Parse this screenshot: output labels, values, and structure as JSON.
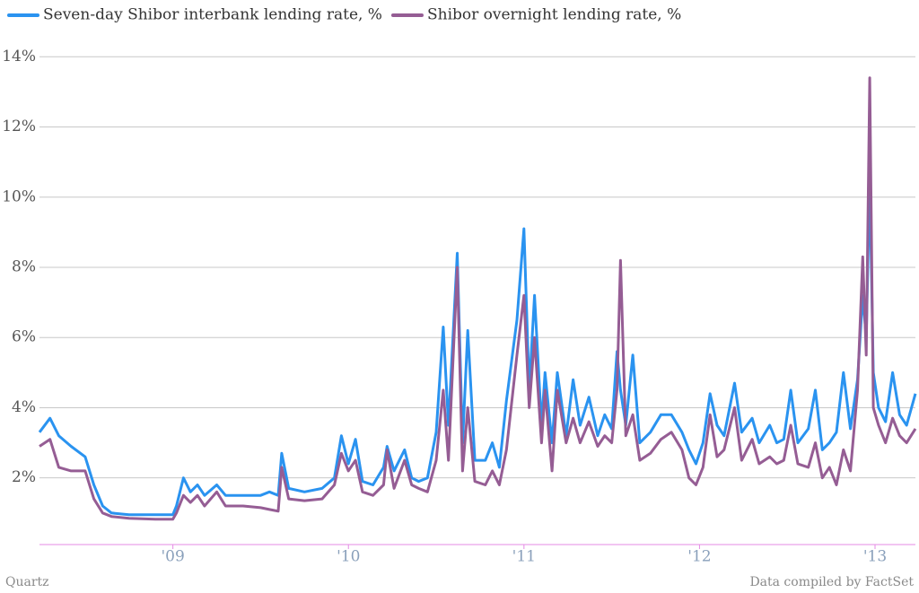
{
  "chart_data": {
    "type": "line",
    "x": [
      2008.24,
      2008.3,
      2008.35,
      2008.42,
      2008.5,
      2008.55,
      2008.6,
      2008.65,
      2008.75,
      2008.9,
      2009.0,
      2009.02,
      2009.06,
      2009.1,
      2009.14,
      2009.18,
      2009.25,
      2009.3,
      2009.4,
      2009.5,
      2009.55,
      2009.6,
      2009.62,
      2009.66,
      2009.75,
      2009.85,
      2009.92,
      2009.96,
      2010.0,
      2010.04,
      2010.08,
      2010.14,
      2010.2,
      2010.22,
      2010.26,
      2010.32,
      2010.36,
      2010.4,
      2010.45,
      2010.5,
      2010.54,
      2010.57,
      2010.62,
      2010.65,
      2010.68,
      2010.72,
      2010.78,
      2010.82,
      2010.86,
      2010.9,
      2010.96,
      2011.0,
      2011.03,
      2011.06,
      2011.1,
      2011.12,
      2011.16,
      2011.19,
      2011.24,
      2011.28,
      2011.32,
      2011.37,
      2011.42,
      2011.46,
      2011.5,
      2011.53,
      2011.55,
      2011.58,
      2011.62,
      2011.66,
      2011.72,
      2011.78,
      2011.84,
      2011.9,
      2011.94,
      2011.98,
      2012.02,
      2012.06,
      2012.1,
      2012.14,
      2012.2,
      2012.24,
      2012.3,
      2012.34,
      2012.4,
      2012.44,
      2012.48,
      2012.52,
      2012.56,
      2012.62,
      2012.66,
      2012.7,
      2012.74,
      2012.78,
      2012.82,
      2012.86,
      2012.9,
      2012.93,
      2012.95,
      2012.97,
      2012.99,
      2013.02,
      2013.06,
      2013.1,
      2013.14,
      2013.18,
      2013.23
    ],
    "series": [
      {
        "name": "Seven-day Shibor interbank lending rate, %",
        "color": "#2a93f0",
        "values": [
          3.3,
          3.7,
          3.2,
          2.9,
          2.6,
          1.8,
          1.2,
          1.0,
          0.95,
          0.95,
          0.95,
          1.2,
          2.0,
          1.6,
          1.8,
          1.5,
          1.8,
          1.5,
          1.5,
          1.5,
          1.6,
          1.5,
          2.7,
          1.7,
          1.6,
          1.7,
          2.0,
          3.2,
          2.4,
          3.1,
          1.9,
          1.8,
          2.3,
          2.9,
          2.2,
          2.8,
          2.0,
          1.9,
          2.0,
          3.3,
          6.3,
          3.5,
          8.4,
          3.0,
          6.2,
          2.5,
          2.5,
          3.0,
          2.3,
          4.2,
          6.5,
          9.1,
          4.5,
          7.2,
          3.5,
          5.0,
          3.0,
          5.0,
          3.2,
          4.8,
          3.5,
          4.3,
          3.2,
          3.8,
          3.4,
          5.6,
          4.5,
          3.5,
          5.5,
          3.0,
          3.3,
          3.8,
          3.8,
          3.3,
          2.8,
          2.4,
          3.0,
          4.4,
          3.5,
          3.2,
          4.7,
          3.3,
          3.7,
          3.0,
          3.5,
          3.0,
          3.1,
          4.5,
          3.0,
          3.4,
          4.5,
          2.8,
          3.0,
          3.3,
          5.0,
          3.4,
          4.8,
          7.2,
          6.0,
          10.5,
          5.0,
          4.0,
          3.6,
          5.0,
          3.8,
          3.5,
          4.4
        ]
      },
      {
        "name": "Shibor overnight lending rate, %",
        "color": "#955d94",
        "values": [
          2.9,
          3.1,
          2.3,
          2.2,
          2.2,
          1.4,
          1.0,
          0.9,
          0.85,
          0.82,
          0.82,
          1.0,
          1.5,
          1.3,
          1.5,
          1.2,
          1.6,
          1.2,
          1.2,
          1.15,
          1.1,
          1.05,
          2.3,
          1.4,
          1.35,
          1.4,
          1.8,
          2.7,
          2.2,
          2.5,
          1.6,
          1.5,
          1.8,
          2.8,
          1.7,
          2.5,
          1.8,
          1.7,
          1.6,
          2.5,
          4.5,
          2.5,
          8.0,
          2.2,
          4.0,
          1.9,
          1.8,
          2.2,
          1.8,
          2.8,
          5.5,
          7.2,
          4.0,
          6.0,
          3.0,
          4.5,
          2.2,
          4.5,
          3.0,
          3.7,
          3.0,
          3.6,
          2.9,
          3.2,
          3.0,
          4.5,
          8.2,
          3.2,
          3.8,
          2.5,
          2.7,
          3.1,
          3.3,
          2.8,
          2.0,
          1.8,
          2.3,
          3.8,
          2.6,
          2.8,
          4.0,
          2.5,
          3.1,
          2.4,
          2.6,
          2.4,
          2.5,
          3.5,
          2.4,
          2.3,
          3.0,
          2.0,
          2.3,
          1.8,
          2.8,
          2.2,
          4.5,
          8.3,
          5.5,
          13.4,
          4.0,
          3.5,
          3.0,
          3.7,
          3.2,
          3.0,
          3.4
        ]
      }
    ],
    "xlim": [
      2008.24,
      2013.23
    ],
    "xticks": [
      {
        "value": 2009,
        "label": "'09"
      },
      {
        "value": 2010,
        "label": "'10"
      },
      {
        "value": 2011,
        "label": "'11"
      },
      {
        "value": 2012,
        "label": "'12"
      },
      {
        "value": 2013,
        "label": "'13"
      }
    ],
    "ylim": [
      0.1,
      14.8
    ],
    "yticks": [
      {
        "value": 2,
        "label": "2%"
      },
      {
        "value": 4,
        "label": "4%"
      },
      {
        "value": 6,
        "label": "6%"
      },
      {
        "value": 8,
        "label": "8%"
      },
      {
        "value": 10,
        "label": "10%"
      },
      {
        "value": 12,
        "label": "12%"
      },
      {
        "value": 14,
        "label": "14%"
      }
    ],
    "grid": true,
    "legend": "top",
    "source": "Data compiled by FactSet",
    "credit": "Quartz"
  }
}
